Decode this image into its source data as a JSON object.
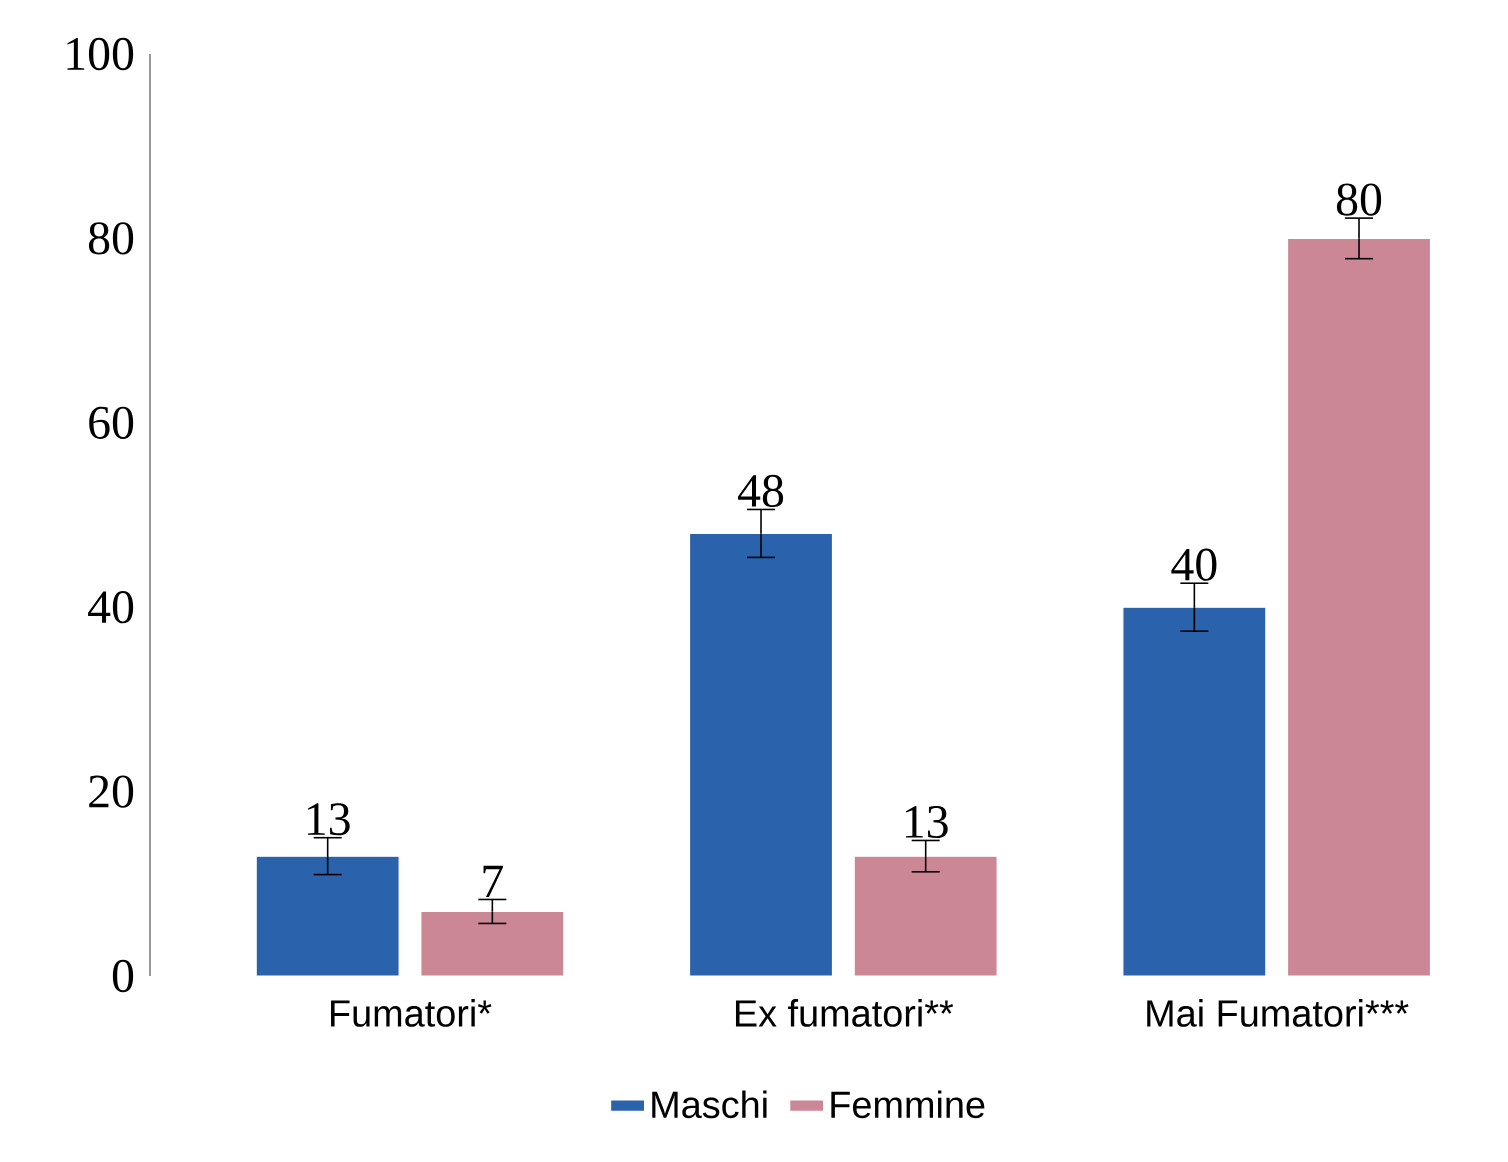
{
  "chart_data": {
    "type": "bar",
    "categories": [
      "Fumatori*",
      "Ex fumatori**",
      "Mai Fumatori***"
    ],
    "series": [
      {
        "name": "Maschi",
        "color": "#2a62ac",
        "values": [
          13,
          48,
          40
        ],
        "errors": [
          2,
          2.6,
          2.6
        ]
      },
      {
        "name": "Femmine",
        "color": "#cc8796",
        "values": [
          7,
          13,
          80
        ],
        "errors": [
          1.3,
          1.7,
          2.2
        ]
      }
    ],
    "ylim": [
      0,
      100
    ],
    "yticks": [
      0,
      20,
      40,
      60,
      80,
      100
    ],
    "data_labels": true,
    "legend": "bottom",
    "grid": false
  }
}
